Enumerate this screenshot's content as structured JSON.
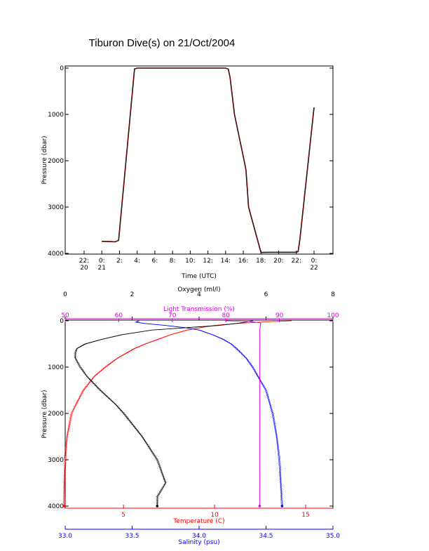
{
  "figure": {
    "title": "Tiburon Dive(s) on 21/Oct/2004"
  },
  "colors": {
    "depth_line": "#000000",
    "depth_line_overlay": "#c00000",
    "temperature": "#ff0000",
    "oxygen": "#000000",
    "light_transmission": "#e000e0",
    "salinity": "#0000ff",
    "axis": "#000000"
  },
  "chart_data": [
    {
      "type": "line",
      "title": "Tiburon Dive(s) on 21/Oct/2004",
      "xlabel": "Time (UTC)",
      "ylabel": "Pressure (dbar)",
      "x_unit": "hours since 22:00 on 20 Oct (UTC)",
      "xlim": [
        0,
        26
      ],
      "ylim": [
        4000,
        0
      ],
      "x_tick_labels": [
        {
          "x": 0,
          "line1": "22:",
          "line2": "20"
        },
        {
          "x": 2,
          "line1": "0:",
          "line2": "21"
        },
        {
          "x": 4,
          "line1": "2:",
          "line2": ""
        },
        {
          "x": 6,
          "line1": "4:",
          "line2": ""
        },
        {
          "x": 8,
          "line1": "6:",
          "line2": ""
        },
        {
          "x": 10,
          "line1": "8:",
          "line2": ""
        },
        {
          "x": 12,
          "line1": "10:",
          "line2": ""
        },
        {
          "x": 14,
          "line1": "12:",
          "line2": ""
        },
        {
          "x": 16,
          "line1": "14:",
          "line2": ""
        },
        {
          "x": 18,
          "line1": "16:",
          "line2": ""
        },
        {
          "x": 20,
          "line1": "18:",
          "line2": ""
        },
        {
          "x": 22,
          "line1": "20:",
          "line2": ""
        },
        {
          "x": 24,
          "line1": "22:",
          "line2": ""
        },
        {
          "x": 26,
          "line1": "0:",
          "line2": "22"
        }
      ],
      "y_ticks": [
        0,
        1000,
        2000,
        3000,
        4000
      ],
      "series": [
        {
          "x": [
            2.0,
            2.8,
            3.5,
            3.9,
            5.7,
            6.0,
            10.0,
            14.0,
            16.0,
            16.3,
            16.5,
            17.0,
            18.1,
            18.3,
            18.6,
            20.0,
            21.0,
            22.0,
            24.0,
            24.2,
            24.4,
            26.0
          ],
          "y": [
            3740,
            3745,
            3750,
            3720,
            20,
            0,
            0,
            0,
            0,
            20,
            200,
            1000,
            2000,
            2200,
            3000,
            3980,
            3975,
            3975,
            3975,
            3960,
            3700,
            850
          ]
        }
      ]
    },
    {
      "type": "scatter",
      "ylabel": "Pressure (dbar)",
      "ylim": [
        4000,
        0
      ],
      "y_ticks": [
        0,
        1000,
        2000,
        3000,
        4000
      ],
      "axes": {
        "temperature": {
          "label": "Temperature (C)",
          "range": [
            1.8,
            16.5
          ],
          "ticks": [
            5,
            10,
            15
          ]
        },
        "salinity": {
          "label": "Salinity (psu)",
          "range": [
            33.0,
            35.0
          ],
          "ticks": [
            "33.0",
            "33.5",
            "34.0",
            "34.5",
            "35.0"
          ]
        },
        "oxygen": {
          "label": "Oxygen (ml/l)",
          "range": [
            0,
            8
          ],
          "ticks": [
            0,
            2,
            4,
            6,
            8
          ]
        },
        "light_transmission": {
          "label": "Light Transmission (%)",
          "range": [
            50,
            100
          ],
          "ticks": [
            50,
            60,
            70,
            80,
            90,
            100
          ]
        }
      },
      "series": [
        {
          "axis": "temperature",
          "depth": [
            0,
            20,
            50,
            100,
            150,
            200,
            300,
            400,
            500,
            600,
            800,
            1000,
            1200,
            1500,
            1800,
            2000,
            2500,
            3000,
            3500,
            4000
          ],
          "value": [
            14.2,
            13.0,
            11.5,
            10.0,
            9.2,
            8.5,
            7.6,
            6.9,
            6.2,
            5.6,
            4.7,
            4.0,
            3.4,
            2.8,
            2.4,
            2.15,
            1.9,
            1.8,
            1.75,
            1.75
          ]
        },
        {
          "axis": "salinity",
          "depth": [
            0,
            30,
            60,
            100,
            150,
            200,
            300,
            400,
            500,
            600,
            800,
            1000,
            1200,
            1500,
            1800,
            2000,
            2500,
            3000,
            3500,
            4000
          ],
          "value": [
            33.55,
            33.53,
            33.6,
            33.75,
            33.9,
            34.0,
            34.1,
            34.18,
            34.24,
            34.28,
            34.35,
            34.4,
            34.44,
            34.5,
            34.53,
            34.55,
            34.58,
            34.6,
            34.61,
            34.62
          ]
        },
        {
          "axis": "oxygen",
          "depth": [
            0,
            50,
            100,
            150,
            200,
            300,
            400,
            500,
            600,
            700,
            800,
            1000,
            1200,
            1500,
            1800,
            2000,
            2500,
            3000,
            3500,
            3800,
            4000
          ],
          "value": [
            5.6,
            5.2,
            4.6,
            3.6,
            2.6,
            1.7,
            1.1,
            0.6,
            0.35,
            0.3,
            0.3,
            0.45,
            0.65,
            1.05,
            1.5,
            1.75,
            2.3,
            2.75,
            3.0,
            2.75,
            2.75
          ]
        },
        {
          "axis": "light_transmission",
          "depth": [
            0,
            20,
            50,
            100,
            200,
            400,
            1000,
            2000,
            3000,
            3500,
            3750,
            3900,
            4000
          ],
          "value": [
            80,
            85,
            86.5,
            86.4,
            86.3,
            86.3,
            86.3,
            86.3,
            86.3,
            86.3,
            86.3,
            86.3,
            86.3
          ]
        }
      ]
    }
  ]
}
